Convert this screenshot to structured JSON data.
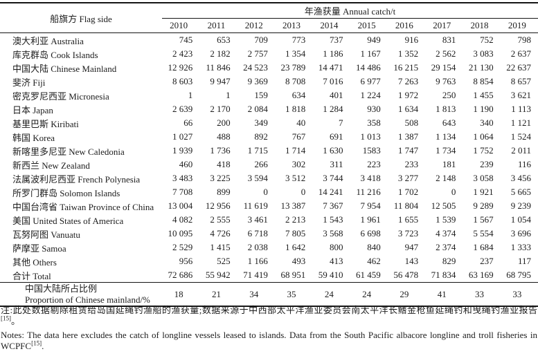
{
  "page": {
    "background": "#ffffff",
    "text_color": "#1c1c1c"
  },
  "table": {
    "header": {
      "flag_side": "船旗方 Flag side",
      "annual_catch": "年渔获量 Annual catch/t",
      "years": [
        "2010",
        "2011",
        "2012",
        "2013",
        "2014",
        "2015",
        "2016",
        "2017",
        "2018",
        "2019"
      ]
    },
    "rows": [
      {
        "label": "澳大利亚 Australia",
        "values": [
          "745",
          "653",
          "709",
          "773",
          "737",
          "949",
          "916",
          "831",
          "752",
          "798"
        ]
      },
      {
        "label": "库克群岛 Cook Islands",
        "values": [
          "2 423",
          "2 182",
          "2 757",
          "1 354",
          "1 186",
          "1 167",
          "1 352",
          "2 562",
          "3 083",
          "2 637"
        ]
      },
      {
        "label": "中国大陆 Chinese Mainland",
        "values": [
          "12 926",
          "11 846",
          "24 523",
          "23 789",
          "14 471",
          "14 486",
          "16 215",
          "29 154",
          "21 130",
          "22 637"
        ]
      },
      {
        "label": "斐济 Fiji",
        "values": [
          "8 603",
          "9 947",
          "9 369",
          "8 708",
          "7 016",
          "6 977",
          "7 263",
          "9 763",
          "8 854",
          "8 657"
        ]
      },
      {
        "label": "密克罗尼西亚 Micronesia",
        "values": [
          "1",
          "1",
          "159",
          "634",
          "401",
          "1 224",
          "1 972",
          "250",
          "1 455",
          "3 621"
        ]
      },
      {
        "label": "日本 Japan",
        "values": [
          "2 639",
          "2 170",
          "2 084",
          "1 818",
          "1 284",
          "930",
          "1 634",
          "1 813",
          "1 190",
          "1 113"
        ]
      },
      {
        "label": "基里巴斯 Kiribati",
        "values": [
          "66",
          "200",
          "349",
          "40",
          "7",
          "358",
          "508",
          "643",
          "340",
          "1 121"
        ]
      },
      {
        "label": "韩国 Korea",
        "values": [
          "1 027",
          "488",
          "892",
          "767",
          "691",
          "1 013",
          "1 387",
          "1 134",
          "1 064",
          "1 524"
        ]
      },
      {
        "label": "新喀里多尼亚 New Caledonia",
        "values": [
          "1 939",
          "1 736",
          "1 715",
          "1 714",
          "1 630",
          "1583",
          "1 747",
          "1 734",
          "1 752",
          "2 011"
        ]
      },
      {
        "label": "新西兰 New Zealand",
        "values": [
          "460",
          "418",
          "266",
          "302",
          "311",
          "223",
          "233",
          "181",
          "239",
          "116"
        ]
      },
      {
        "label": "法属波利尼西亚 French Polynesia",
        "values": [
          "3 483",
          "3 225",
          "3 594",
          "3 512",
          "3 744",
          "3 418",
          "3 277",
          "2 148",
          "3 058",
          "3 456"
        ]
      },
      {
        "label": "所罗门群岛 Solomon Islands",
        "values": [
          "7 708",
          "899",
          "0",
          "0",
          "14 241",
          "11 216",
          "1 702",
          "0",
          "1 921",
          "5 665"
        ]
      },
      {
        "label": "中国台湾省 Taiwan Province of China",
        "values": [
          "13 004",
          "12 956",
          "11 619",
          "13 387",
          "7 367",
          "7 954",
          "11 804",
          "12 505",
          "9 289",
          "9 239"
        ]
      },
      {
        "label": "美国 United States of America",
        "values": [
          "4 082",
          "2 555",
          "3 461",
          "2 213",
          "1 543",
          "1 961",
          "1 655",
          "1 539",
          "1 567",
          "1 054"
        ]
      },
      {
        "label": "瓦努阿图 Vanuatu",
        "values": [
          "10 095",
          "4 726",
          "6 718",
          "7 805",
          "3 568",
          "6 698",
          "3 723",
          "4 374",
          "5 554",
          "3 696"
        ]
      },
      {
        "label": "萨摩亚 Samoa",
        "values": [
          "2 529",
          "1 415",
          "2 038",
          "1 642",
          "800",
          "840",
          "947",
          "2 374",
          "1 684",
          "1 333"
        ]
      },
      {
        "label": "其他 Others",
        "values": [
          "956",
          "525",
          "1 166",
          "493",
          "413",
          "462",
          "143",
          "829",
          "237",
          "117"
        ]
      },
      {
        "label": "合计 Total",
        "values": [
          "72 686",
          "55 942",
          "71 419",
          "68 951",
          "59 410",
          "61 459",
          "56 478",
          "71 834",
          "63 169",
          "68 795"
        ]
      }
    ],
    "proportion_row": {
      "label_cn": "中国大陆所占比例",
      "label_en": "Proportion of Chinese mainland/%",
      "values": [
        "18",
        "21",
        "34",
        "35",
        "24",
        "24",
        "29",
        "41",
        "33",
        "33"
      ]
    }
  },
  "notes": {
    "cn_text": "注:此处数据剔除租赁给岛国延绳钓渔船的渔获量;数据来源于中西部太平洋渔业委员会南太平洋长鳍金枪鱼延绳钓和曳绳钓渔业报告",
    "cn_citation": "[15]",
    "cn_tail": "。",
    "en_text": "Notes: The data here excludes the catch of longline vessels leased to islands. Data from the South Pacific albacore longline and troll fisheries in WCPFC",
    "en_citation": "[15]",
    "en_tail": "."
  }
}
